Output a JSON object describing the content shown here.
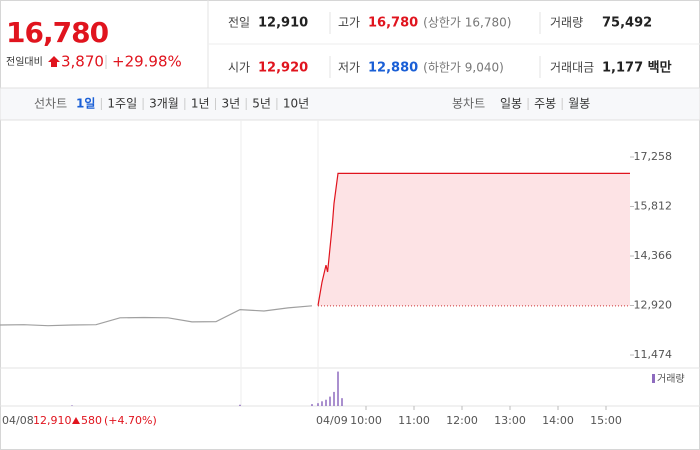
{
  "quote": {
    "price": "16,780",
    "change_label": "전일대비",
    "change": "3,870",
    "change_pct": "+29.98%"
  },
  "stats": [
    {
      "label": "전일",
      "value": "12,910"
    },
    {
      "label": "고가",
      "value": "16,780",
      "note": "(상한가 16,780)"
    },
    {
      "label": "거래량",
      "value": "75,492"
    },
    {
      "label": "시가",
      "value": "12,920"
    },
    {
      "label": "저가",
      "value": "12,880",
      "note": "(하한가 9,040)"
    },
    {
      "label": "거래대금",
      "value": "1,177 백만"
    }
  ],
  "tabs": {
    "line_label": "선차트",
    "line": [
      "1일",
      "1주일",
      "3개월",
      "1년",
      "3년",
      "5년",
      "10년"
    ],
    "candle_label": "봉차트",
    "candle": [
      "일봉",
      "주봉",
      "월봉"
    ]
  },
  "prev_day": {
    "date": "04/08",
    "close": "12,910",
    "change": "580",
    "pct": "(+4.70%)"
  },
  "chart_data": [
    {
      "type": "line",
      "baseline": 12910,
      "series": [
        {
          "date": "04/08",
          "color": "#a0a0a0",
          "x": [
            "09:00",
            "09:30",
            "10:00",
            "10:30",
            "11:00",
            "11:30",
            "12:00",
            "12:30",
            "13:00",
            "13:30",
            "14:00",
            "14:30",
            "15:00",
            "15:30"
          ],
          "values": [
            12350,
            12360,
            12330,
            12350,
            12360,
            12560,
            12570,
            12560,
            12440,
            12450,
            12800,
            12760,
            12850,
            12910
          ]
        },
        {
          "date": "04/09",
          "color": "#e0141e",
          "x": [
            "09:00",
            "09:05",
            "09:10",
            "09:12",
            "09:15",
            "09:18",
            "09:20",
            "09:25",
            "12:00",
            "15:30"
          ],
          "values": [
            12920,
            13600,
            14100,
            13900,
            14600,
            15300,
            15900,
            16780,
            16780,
            16780
          ]
        }
      ],
      "xticks": [
        "10:00",
        "11:00",
        "12:00",
        "13:00",
        "14:00",
        "15:00"
      ],
      "ylim": [
        11182,
        18105
      ],
      "yticks": [
        {
          "value": 11474,
          "label": "11,474"
        },
        {
          "value": 12920,
          "label": "12,920"
        },
        {
          "value": 14366,
          "label": "14,366"
        },
        {
          "value": 15812,
          "label": "15,812"
        },
        {
          "value": 17258,
          "label": "17,258"
        }
      ],
      "grid": false
    },
    {
      "type": "bar",
      "name": "거래량",
      "color": "#8e6bbf",
      "ylim": [
        0,
        11500
      ],
      "series": [
        {
          "date": "04/08",
          "x": [
            "10:30",
            "14:00",
            "15:30"
          ],
          "values": [
            200,
            400,
            600
          ]
        },
        {
          "date": "04/09",
          "x": [
            "09:00",
            "09:05",
            "09:10",
            "09:15",
            "09:20",
            "09:25",
            "09:30"
          ],
          "values": [
            900,
            1500,
            2000,
            3000,
            4500,
            11000,
            2500
          ]
        }
      ]
    }
  ]
}
